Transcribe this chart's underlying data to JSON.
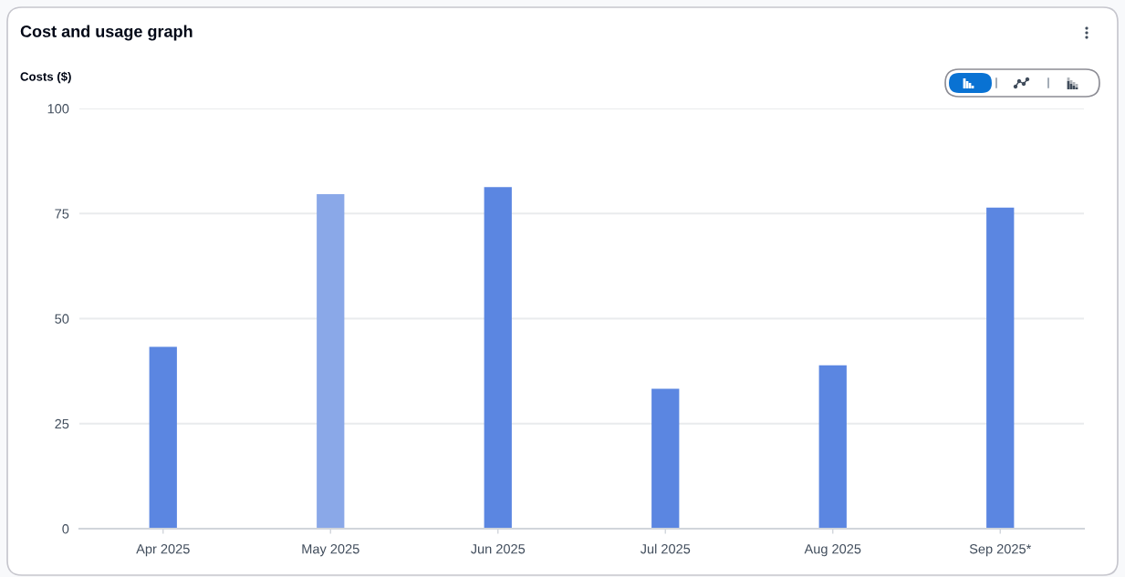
{
  "chart_data": {
    "type": "bar",
    "title": "Cost and usage graph",
    "ylabel": "Costs ($)",
    "categories": [
      "Apr 2025",
      "May 2025",
      "Jun 2025",
      "Jul 2025",
      "Aug 2025",
      "Sep 2025*"
    ],
    "values": [
      43.3,
      79.6,
      81.3,
      33.3,
      38.9,
      76.4
    ],
    "colors": [
      "#5b86e1",
      "#8aa8e8",
      "#5b86e1",
      "#5b86e1",
      "#5b86e1",
      "#5b86e1"
    ],
    "ylim": [
      0,
      100
    ],
    "yticks": [
      0,
      25,
      50,
      75,
      100
    ],
    "grid": "y"
  }
}
